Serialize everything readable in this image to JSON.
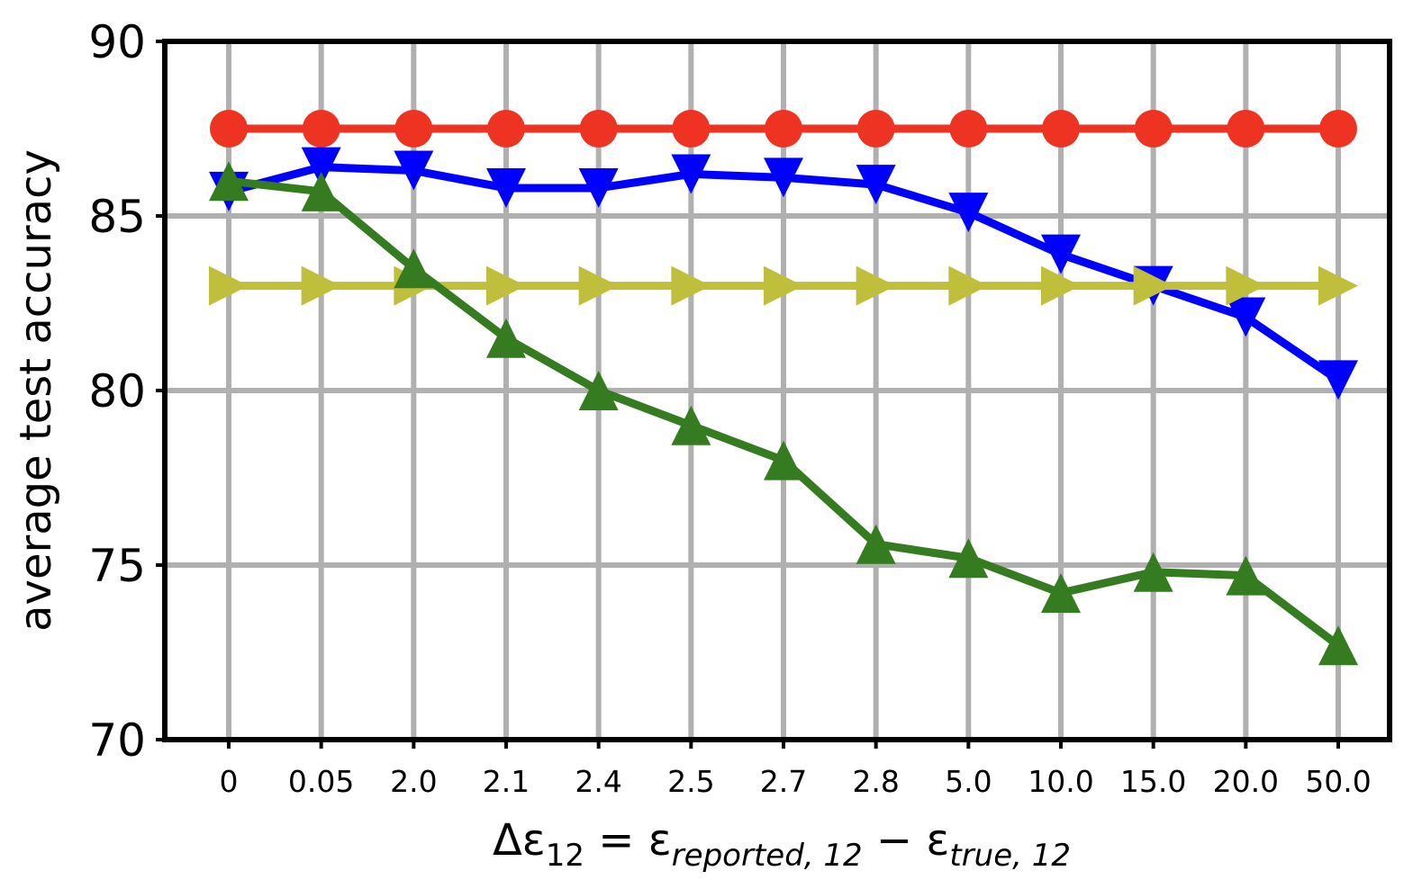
{
  "chart_data": {
    "type": "line",
    "title": "",
    "ylabel": "average test accuracy",
    "xlabel": {
      "prefix": "Δε",
      "sub1": "12",
      "eq": " = ε",
      "sub2": "reported, 12",
      "minus": " − ε",
      "sub3": "true, 12"
    },
    "categories": [
      "0",
      "0.05",
      "2.0",
      "2.1",
      "2.4",
      "2.5",
      "2.7",
      "2.8",
      "5.0",
      "10.0",
      "15.0",
      "20.0",
      "50.0"
    ],
    "ylim": [
      70,
      90
    ],
    "yticks": [
      70,
      75,
      80,
      85,
      90
    ],
    "grid": true,
    "legend": "none",
    "series": [
      {
        "color": "#ee3322",
        "marker": "circle",
        "values": [
          87.5,
          87.5,
          87.5,
          87.5,
          87.5,
          87.5,
          87.5,
          87.5,
          87.5,
          87.5,
          87.5,
          87.5,
          87.5
        ]
      },
      {
        "color": "#0000ff",
        "marker": "triangle-down",
        "values": [
          85.7,
          86.4,
          86.3,
          85.8,
          85.8,
          86.2,
          86.1,
          85.9,
          85.1,
          83.9,
          83.0,
          82.1,
          80.3
        ]
      },
      {
        "color": "#c0bf3c",
        "marker": "triangle-right",
        "values": [
          83.0,
          83.0,
          83.0,
          83.0,
          83.0,
          83.0,
          83.0,
          83.0,
          83.0,
          83.0,
          83.0,
          83.0,
          83.0
        ]
      },
      {
        "color": "#357b1f",
        "marker": "triangle-up",
        "values": [
          86.0,
          85.7,
          83.5,
          81.5,
          80.0,
          79.0,
          78.0,
          75.6,
          75.2,
          74.2,
          74.8,
          74.7,
          72.7
        ]
      }
    ]
  }
}
